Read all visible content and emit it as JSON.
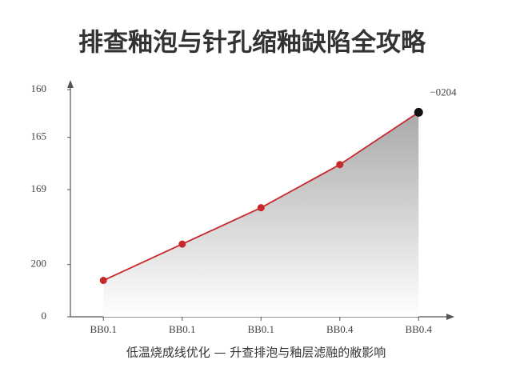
{
  "chart_data": {
    "type": "area-line",
    "title": "排查釉泡与针孔缩釉缺陷全攻略",
    "x_label": "低温烧成线优化 — 升查排泡与釉层滤融的敝影响",
    "categories": [
      "BB0.1",
      "BB0.1",
      "BB0.1",
      "BB0.4",
      "BB0.4"
    ],
    "values": [
      16,
      32,
      48,
      67,
      90
    ],
    "color": "#c8282a",
    "highlight_color": "#111111",
    "annotation": "−0204",
    "ylim": [
      0,
      102
    ],
    "yticks": [
      0,
      {
        "value": 23,
        "label": "200"
      },
      {
        "value": 56,
        "label": "169"
      },
      {
        "value": 79,
        "label": "165"
      },
      {
        "value": 100,
        "label": "160"
      }
    ]
  }
}
